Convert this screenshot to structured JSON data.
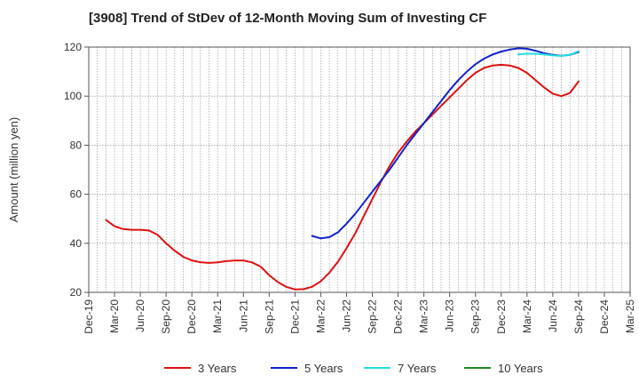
{
  "title": "[3908]  Trend of StDev of 12-Month Moving Sum of Investing CF",
  "chart_data": {
    "type": "line",
    "title": "[3908]  Trend of StDev of 12-Month Moving Sum of Investing CF",
    "xlabel": "",
    "ylabel": "Amount (million yen)",
    "ylim": [
      20,
      120
    ],
    "yticks": [
      20,
      40,
      60,
      80,
      100,
      120
    ],
    "xticks": [
      "Dec-19",
      "Mar-20",
      "Jun-20",
      "Sep-20",
      "Dec-20",
      "Mar-21",
      "Jun-21",
      "Sep-21",
      "Dec-21",
      "Mar-22",
      "Jun-22",
      "Sep-22",
      "Dec-22",
      "Mar-23",
      "Jun-23",
      "Sep-23",
      "Dec-23",
      "Mar-24",
      "Jun-24",
      "Sep-24",
      "Dec-24",
      "Mar-25"
    ],
    "grid": true,
    "legend_position": "bottom",
    "series": [
      {
        "name": "3 Years",
        "color": "#dd1111",
        "x": [
          "Feb-20",
          "Mar-20",
          "Apr-20",
          "May-20",
          "Jun-20",
          "Jul-20",
          "Aug-20",
          "Sep-20",
          "Oct-20",
          "Nov-20",
          "Dec-20",
          "Jan-21",
          "Feb-21",
          "Mar-21",
          "Apr-21",
          "May-21",
          "Jun-21",
          "Jul-21",
          "Aug-21",
          "Sep-21",
          "Oct-21",
          "Nov-21",
          "Dec-21",
          "Jan-22",
          "Feb-22",
          "Mar-22",
          "Apr-22",
          "May-22",
          "Jun-22",
          "Jul-22",
          "Aug-22",
          "Sep-22",
          "Oct-22",
          "Nov-22",
          "Dec-22",
          "Jan-23",
          "Feb-23",
          "Mar-23",
          "Apr-23",
          "May-23",
          "Jun-23",
          "Jul-23",
          "Aug-23",
          "Sep-23",
          "Oct-23",
          "Nov-23",
          "Dec-23",
          "Jan-24",
          "Feb-24",
          "Mar-24",
          "Apr-24",
          "May-24",
          "Jun-24",
          "Jul-24",
          "Aug-24",
          "Sep-24"
        ],
        "values": [
          49.5,
          47,
          45.8,
          45.5,
          45.5,
          45.2,
          43.5,
          40,
          37,
          34.5,
          33,
          32.3,
          32,
          32.2,
          32.7,
          33,
          33,
          32.2,
          30.5,
          27,
          24.2,
          22.2,
          21.2,
          21.3,
          22.3,
          24.5,
          28,
          32.5,
          38,
          44,
          51,
          58,
          65,
          71.5,
          77,
          81.5,
          85.5,
          89,
          92.5,
          96,
          99.5,
          103,
          106.5,
          109.5,
          111.5,
          112.5,
          112.8,
          112.5,
          111.5,
          109.5,
          106.5,
          103.5,
          101,
          100,
          101.3,
          106
        ]
      },
      {
        "name": "5 Years",
        "color": "#1122cc",
        "x": [
          "Feb-22",
          "Mar-22",
          "Apr-22",
          "May-22",
          "Jun-22",
          "Jul-22",
          "Aug-22",
          "Sep-22",
          "Oct-22",
          "Nov-22",
          "Dec-22",
          "Jan-23",
          "Feb-23",
          "Mar-23",
          "Apr-23",
          "May-23",
          "Jun-23",
          "Jul-23",
          "Aug-23",
          "Sep-23",
          "Oct-23",
          "Nov-23",
          "Dec-23",
          "Jan-24",
          "Feb-24",
          "Mar-24",
          "Apr-24",
          "May-24",
          "Jun-24",
          "Jul-24",
          "Aug-24",
          "Sep-24"
        ],
        "values": [
          43,
          42,
          42.5,
          44.5,
          48,
          52,
          56.5,
          61,
          65.5,
          70,
          75,
          80,
          84.5,
          89,
          93.5,
          98,
          102.5,
          106.5,
          110,
          113,
          115.3,
          117,
          118.2,
          119,
          119.5,
          119.3,
          118.5,
          117.5,
          116.8,
          116.5,
          116.8,
          118
        ]
      },
      {
        "name": "7 Years",
        "color": "#22dddd",
        "x": [
          "Feb-24",
          "Mar-24",
          "Apr-24",
          "May-24",
          "Jun-24",
          "Jul-24",
          "Aug-24",
          "Sep-24"
        ],
        "values": [
          117,
          117.3,
          117.3,
          117,
          116.6,
          116.4,
          116.8,
          118.3
        ]
      },
      {
        "name": "10 Years",
        "color": "#228822",
        "x": [],
        "values": []
      }
    ]
  }
}
